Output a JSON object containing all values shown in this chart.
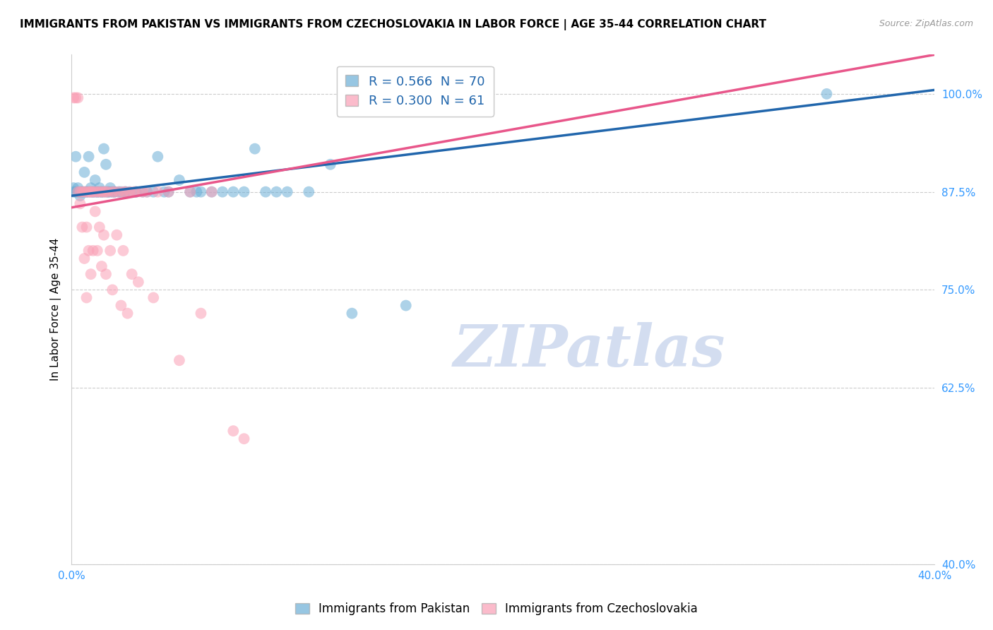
{
  "title": "IMMIGRANTS FROM PAKISTAN VS IMMIGRANTS FROM CZECHOSLOVAKIA IN LABOR FORCE | AGE 35-44 CORRELATION CHART",
  "source": "Source: ZipAtlas.com",
  "ylabel": "In Labor Force | Age 35-44",
  "xlim": [
    0.0,
    0.4
  ],
  "ylim": [
    0.4,
    1.05
  ],
  "yticks": [
    0.4,
    0.625,
    0.75,
    0.875,
    1.0
  ],
  "ytick_labels": [
    "40.0%",
    "62.5%",
    "75.0%",
    "87.5%",
    "100.0%"
  ],
  "xticks": [
    0.0,
    0.1,
    0.2,
    0.3,
    0.4
  ],
  "xtick_labels": [
    "0.0%",
    "",
    "",
    "",
    "40.0%"
  ],
  "pakistan_color": "#6baed6",
  "czechoslovakia_color": "#fa9fb5",
  "pakistan_line_color": "#2166ac",
  "czechoslovakia_line_color": "#e8568a",
  "pakistan_R": 0.566,
  "pakistan_N": 70,
  "czechoslovakia_R": 0.3,
  "czechoslovakia_N": 61,
  "watermark": "ZIPatlas",
  "watermark_color": "#d3ddf0",
  "pakistan_points": [
    [
      0.001,
      0.875
    ],
    [
      0.001,
      0.88
    ],
    [
      0.002,
      0.875
    ],
    [
      0.002,
      0.92
    ],
    [
      0.003,
      0.875
    ],
    [
      0.003,
      0.88
    ],
    [
      0.004,
      0.875
    ],
    [
      0.004,
      0.87
    ],
    [
      0.005,
      0.875
    ],
    [
      0.005,
      0.875
    ],
    [
      0.006,
      0.875
    ],
    [
      0.006,
      0.9
    ],
    [
      0.007,
      0.875
    ],
    [
      0.007,
      0.875
    ],
    [
      0.008,
      0.875
    ],
    [
      0.008,
      0.92
    ],
    [
      0.009,
      0.875
    ],
    [
      0.009,
      0.88
    ],
    [
      0.01,
      0.875
    ],
    [
      0.01,
      0.875
    ],
    [
      0.011,
      0.875
    ],
    [
      0.011,
      0.89
    ],
    [
      0.012,
      0.875
    ],
    [
      0.012,
      0.875
    ],
    [
      0.013,
      0.875
    ],
    [
      0.013,
      0.88
    ],
    [
      0.014,
      0.875
    ],
    [
      0.014,
      0.875
    ],
    [
      0.015,
      0.875
    ],
    [
      0.015,
      0.93
    ],
    [
      0.016,
      0.875
    ],
    [
      0.016,
      0.91
    ],
    [
      0.017,
      0.875
    ],
    [
      0.017,
      0.875
    ],
    [
      0.018,
      0.875
    ],
    [
      0.018,
      0.88
    ],
    [
      0.019,
      0.875
    ],
    [
      0.02,
      0.875
    ],
    [
      0.02,
      0.875
    ],
    [
      0.022,
      0.875
    ],
    [
      0.023,
      0.875
    ],
    [
      0.025,
      0.875
    ],
    [
      0.025,
      0.875
    ],
    [
      0.027,
      0.875
    ],
    [
      0.03,
      0.875
    ],
    [
      0.03,
      0.875
    ],
    [
      0.033,
      0.875
    ],
    [
      0.035,
      0.875
    ],
    [
      0.038,
      0.875
    ],
    [
      0.04,
      0.92
    ],
    [
      0.043,
      0.875
    ],
    [
      0.045,
      0.875
    ],
    [
      0.05,
      0.89
    ],
    [
      0.055,
      0.875
    ],
    [
      0.058,
      0.875
    ],
    [
      0.06,
      0.875
    ],
    [
      0.065,
      0.875
    ],
    [
      0.07,
      0.875
    ],
    [
      0.075,
      0.875
    ],
    [
      0.08,
      0.875
    ],
    [
      0.085,
      0.93
    ],
    [
      0.09,
      0.875
    ],
    [
      0.095,
      0.875
    ],
    [
      0.1,
      0.875
    ],
    [
      0.11,
      0.875
    ],
    [
      0.12,
      0.91
    ],
    [
      0.13,
      0.72
    ],
    [
      0.155,
      0.73
    ],
    [
      0.35,
      1.0
    ]
  ],
  "czechoslovakia_points": [
    [
      0.001,
      0.995
    ],
    [
      0.002,
      0.995
    ],
    [
      0.003,
      0.995
    ],
    [
      0.003,
      0.875
    ],
    [
      0.004,
      0.875
    ],
    [
      0.004,
      0.86
    ],
    [
      0.005,
      0.875
    ],
    [
      0.005,
      0.83
    ],
    [
      0.006,
      0.875
    ],
    [
      0.006,
      0.79
    ],
    [
      0.007,
      0.875
    ],
    [
      0.007,
      0.83
    ],
    [
      0.007,
      0.74
    ],
    [
      0.008,
      0.875
    ],
    [
      0.008,
      0.8
    ],
    [
      0.009,
      0.875
    ],
    [
      0.009,
      0.875
    ],
    [
      0.009,
      0.77
    ],
    [
      0.01,
      0.875
    ],
    [
      0.01,
      0.8
    ],
    [
      0.011,
      0.875
    ],
    [
      0.011,
      0.85
    ],
    [
      0.012,
      0.875
    ],
    [
      0.012,
      0.8
    ],
    [
      0.013,
      0.875
    ],
    [
      0.013,
      0.83
    ],
    [
      0.014,
      0.875
    ],
    [
      0.014,
      0.78
    ],
    [
      0.015,
      0.875
    ],
    [
      0.015,
      0.82
    ],
    [
      0.016,
      0.875
    ],
    [
      0.016,
      0.77
    ],
    [
      0.017,
      0.875
    ],
    [
      0.018,
      0.8
    ],
    [
      0.019,
      0.875
    ],
    [
      0.019,
      0.75
    ],
    [
      0.02,
      0.875
    ],
    [
      0.021,
      0.82
    ],
    [
      0.022,
      0.875
    ],
    [
      0.023,
      0.73
    ],
    [
      0.024,
      0.875
    ],
    [
      0.024,
      0.8
    ],
    [
      0.025,
      0.875
    ],
    [
      0.026,
      0.72
    ],
    [
      0.027,
      0.875
    ],
    [
      0.028,
      0.77
    ],
    [
      0.029,
      0.875
    ],
    [
      0.03,
      0.875
    ],
    [
      0.031,
      0.76
    ],
    [
      0.033,
      0.875
    ],
    [
      0.035,
      0.875
    ],
    [
      0.038,
      0.74
    ],
    [
      0.04,
      0.875
    ],
    [
      0.045,
      0.875
    ],
    [
      0.05,
      0.66
    ],
    [
      0.055,
      0.875
    ],
    [
      0.06,
      0.72
    ],
    [
      0.065,
      0.875
    ],
    [
      0.075,
      0.57
    ],
    [
      0.08,
      0.56
    ]
  ]
}
